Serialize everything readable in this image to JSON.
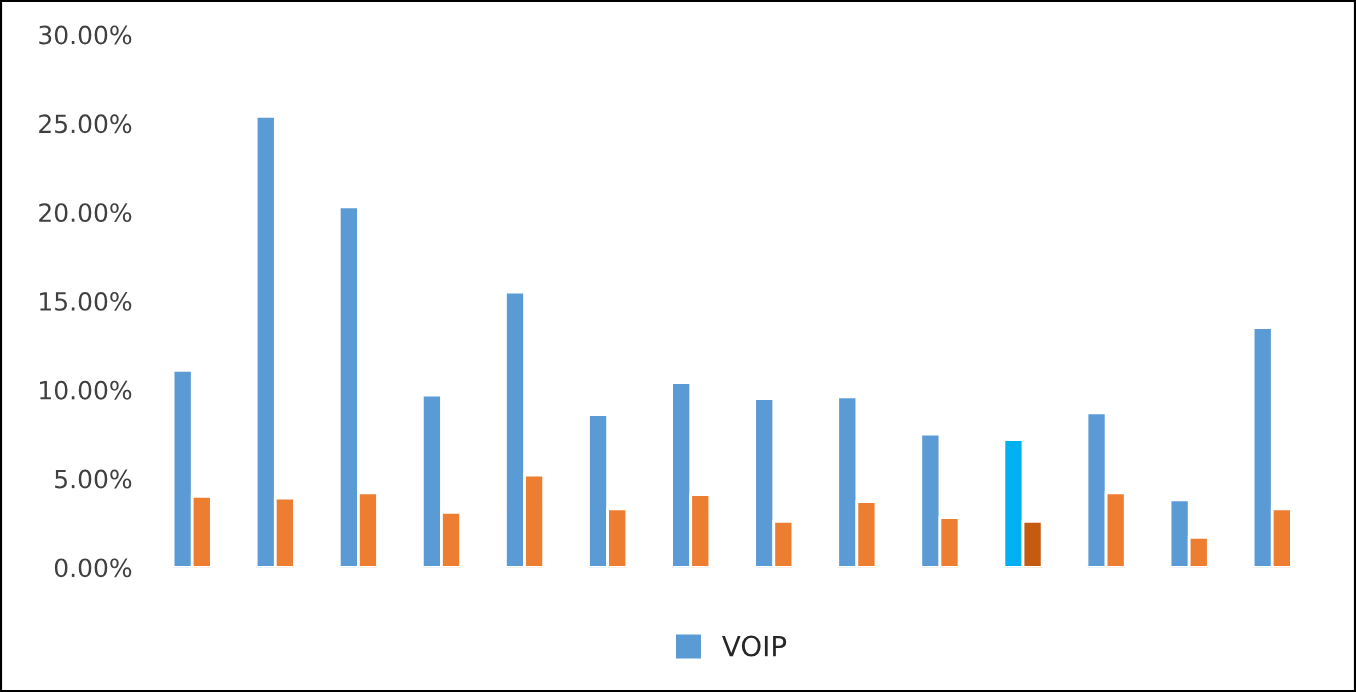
{
  "chart_data": {
    "type": "bar",
    "categories": [
      null,
      null,
      null,
      null,
      null,
      null,
      null,
      null,
      null,
      null,
      null,
      null,
      null,
      null
    ],
    "series": [
      {
        "name": "VOIP",
        "color": "#5b9bd5",
        "colors": [
          null,
          null,
          null,
          null,
          null,
          null,
          null,
          null,
          null,
          null,
          "#00b0f0",
          null,
          null,
          null
        ],
        "values": [
          11.1,
          25.4,
          20.3,
          9.7,
          15.5,
          8.6,
          10.4,
          9.5,
          9.6,
          7.5,
          7.2,
          8.7,
          3.8,
          13.5
        ]
      },
      {
        "color": "#ed7d31",
        "colors": [
          null,
          null,
          null,
          null,
          null,
          null,
          null,
          null,
          null,
          null,
          "#c55a11",
          null,
          null,
          null
        ],
        "values": [
          4.0,
          3.9,
          4.2,
          3.1,
          5.2,
          3.3,
          4.1,
          2.6,
          3.7,
          2.8,
          2.6,
          4.2,
          1.7,
          3.3
        ]
      }
    ],
    "ylim": [
      0,
      30
    ],
    "yticks": [
      {
        "value": 0,
        "label": "0.00%"
      },
      {
        "value": 5,
        "label": "5.00%"
      },
      {
        "value": 10,
        "label": "10.00%"
      },
      {
        "value": 15,
        "label": "15.00%"
      },
      {
        "value": 20,
        "label": "20.00%"
      },
      {
        "value": 25,
        "label": "25.00%"
      },
      {
        "value": 30,
        "label": "30.00%"
      }
    ],
    "grid": false,
    "legend": "bottom"
  }
}
